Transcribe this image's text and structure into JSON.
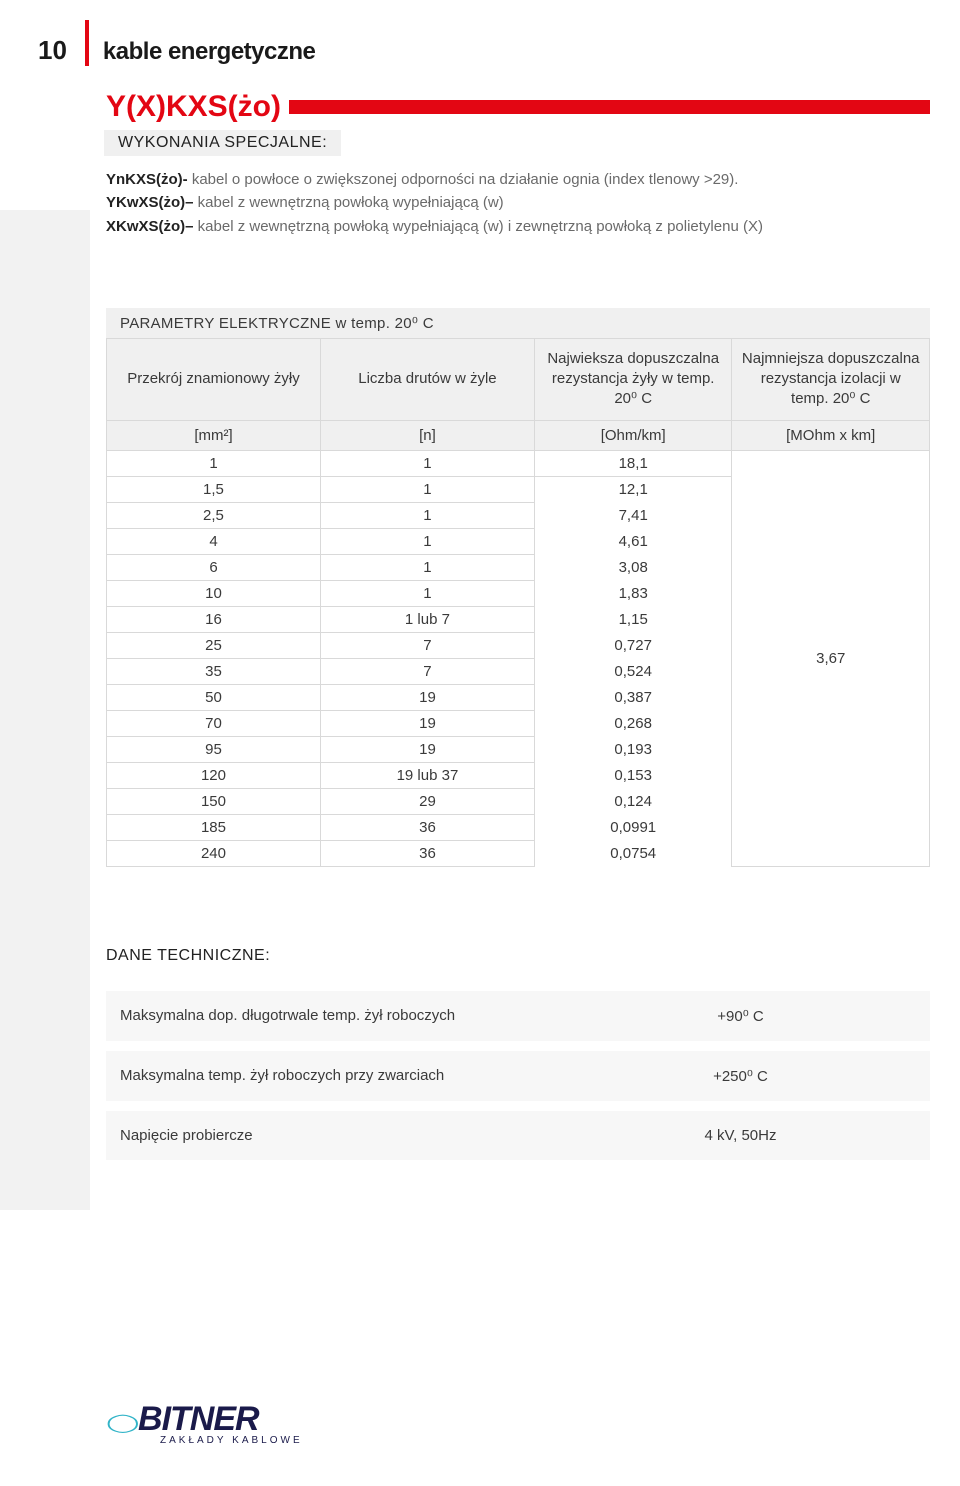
{
  "page_number": "10",
  "header_title": "kable energetyczne",
  "product_code": "Y(X)KXS(żo)",
  "special_executions_label": "WYKONANIA SPECJALNE:",
  "variants": [
    {
      "code": "YnKXS(żo)-",
      "desc": " kabel o powłoce o zwiększonej odporności na działanie ognia (index tlenowy >29)."
    },
    {
      "code": "YKwXS(żo)–",
      "desc": " kabel z wewnętrzną powłoką wypełniającą (w)"
    },
    {
      "code": "XKwXS(żo)–",
      "desc": " kabel z wewnętrzną powłoką wypełniającą (w) i zewnętrzną powłoką z polietylenu (X)"
    }
  ],
  "params_header": "PARAMETRY ELEKTRYCZNE w temp. 20⁰ C",
  "params_table": {
    "columns": [
      "Przekrój znamionowy żyły",
      "Liczba drutów w żyle",
      "Najwieksza dopuszczalna rezystancja żyły w temp. 20⁰ C",
      "Najmniejsza dopuszczalna rezystancja izolacji w temp. 20⁰ C"
    ],
    "units": [
      "[mm²]",
      "[n]",
      "[Ohm/km]",
      "[MOhm x km]"
    ],
    "rows": [
      [
        "1",
        "1",
        "18,1"
      ],
      [
        "1,5",
        "1",
        "12,1"
      ],
      [
        "2,5",
        "1",
        "7,41"
      ],
      [
        "4",
        "1",
        "4,61"
      ],
      [
        "6",
        "1",
        "3,08"
      ],
      [
        "10",
        "1",
        "1,83"
      ],
      [
        "16",
        "1 lub 7",
        "1,15"
      ],
      [
        "25",
        "7",
        "0,727"
      ],
      [
        "35",
        "7",
        "0,524"
      ],
      [
        "50",
        "19",
        "0,387"
      ],
      [
        "70",
        "19",
        "0,268"
      ],
      [
        "95",
        "19",
        "0,193"
      ],
      [
        "120",
        "19 lub 37",
        "0,153"
      ],
      [
        "150",
        "29",
        "0,124"
      ],
      [
        "185",
        "36",
        "0,0991"
      ],
      [
        "240",
        "36",
        "0,0754"
      ]
    ],
    "merged_last_col": "3,67",
    "col_widths": [
      "26%",
      "26%",
      "24%",
      "24%"
    ],
    "header_bg": "#f0f0f0",
    "border_color": "#d9d9d9"
  },
  "tech_header": "DANE TECHNICZNE:",
  "tech_rows": [
    {
      "label": "Maksymalna dop. długotrwale temp. żył roboczych",
      "value": "+90⁰ C"
    },
    {
      "label": "Maksymalna temp. żył roboczych przy zwarciach",
      "value": "+250⁰ C"
    },
    {
      "label": "Napięcie probiercze",
      "value": "4 kV, 50Hz"
    }
  ],
  "logo": {
    "name": "BITNER",
    "tagline": "ZAKŁADY KABLOWE"
  },
  "colors": {
    "accent_red": "#e30613",
    "text_gray": "#6a6a6a",
    "light_bg": "#f0f0f0"
  }
}
